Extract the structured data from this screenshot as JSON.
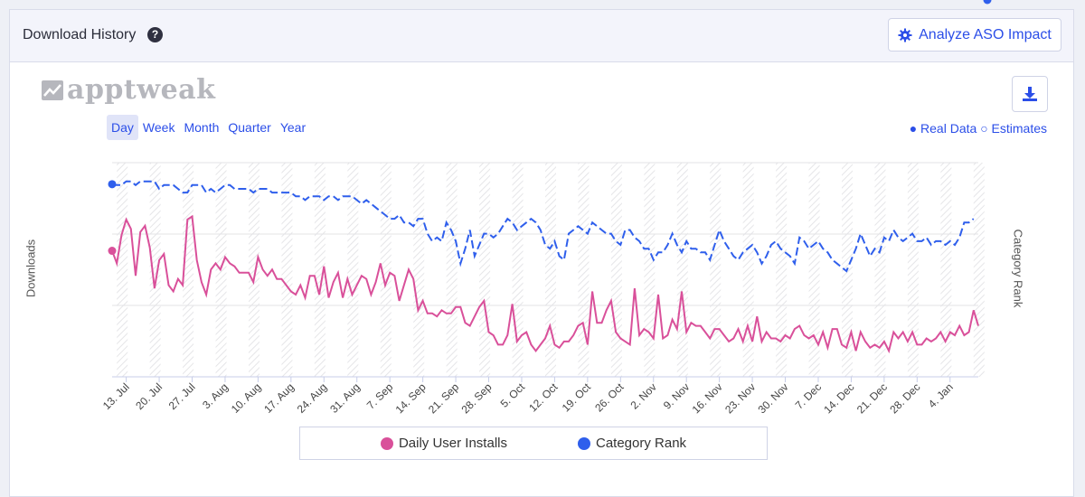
{
  "header": {
    "title": "Download History",
    "help_icon": "question-circle-icon",
    "analyze_button": "Analyze ASO Impact",
    "analyze_icon": "gear-icon"
  },
  "logo": {
    "text": "apptweak",
    "icon": "chart-trend-icon"
  },
  "toolbar": {
    "download_icon": "download-icon",
    "periods": [
      "Day",
      "Week",
      "Month",
      "Quarter",
      "Year"
    ],
    "active_period": "Day"
  },
  "data_legend": {
    "real": "● Real Data",
    "estimates": "○ Estimates"
  },
  "colors": {
    "installs": "#d9509a",
    "rank": "#2f5fec",
    "accent": "#2b4ee8"
  },
  "chart_data": {
    "type": "line",
    "xlabel": "",
    "ylabel": "Downloads",
    "y2label": "Category Rank",
    "grid": true,
    "legend_position": "bottom",
    "x_ticks": [
      "13. Jul",
      "20. Jul",
      "27. Jul",
      "3. Aug",
      "10. Aug",
      "17. Aug",
      "24. Aug",
      "31. Aug",
      "7. Sep",
      "14. Sep",
      "21. Sep",
      "28. Sep",
      "5. Oct",
      "12. Oct",
      "19. Oct",
      "26. Oct",
      "2. Nov",
      "9. Nov",
      "16. Nov",
      "23. Nov",
      "30. Nov",
      "7. Dec",
      "14. Dec",
      "21. Dec",
      "28. Dec",
      "4. Jan"
    ],
    "series": [
      {
        "name": "Daily User Installs",
        "axis": "left",
        "style": "solid",
        "values": [
          70,
          66,
          75,
          80,
          77,
          62,
          76,
          78,
          71,
          58,
          67,
          69,
          59,
          57,
          61,
          59,
          80,
          81,
          67,
          60,
          56,
          64,
          66,
          64,
          68,
          66,
          65,
          63,
          63,
          63,
          60,
          68,
          64,
          62,
          64,
          61,
          61,
          59,
          57,
          56,
          59,
          55,
          62,
          62,
          56,
          65,
          55,
          60,
          63,
          55,
          61,
          56,
          59,
          62,
          61,
          56,
          60,
          66,
          59,
          63,
          62,
          54,
          59,
          64,
          61,
          51,
          54,
          50,
          50,
          49,
          51,
          50,
          50,
          52,
          52,
          47,
          46,
          49,
          52,
          54,
          44,
          43,
          40,
          40,
          43,
          53,
          41,
          43,
          44,
          40,
          38,
          40,
          42,
          46,
          40,
          39,
          41,
          41,
          43,
          46,
          47,
          40,
          57,
          47,
          47,
          51,
          54,
          44,
          42,
          41,
          40,
          58,
          43,
          45,
          44,
          42,
          56,
          42,
          43,
          48,
          45,
          57,
          44,
          47,
          46,
          46,
          44,
          42,
          45,
          45,
          43,
          41,
          42,
          45,
          41,
          46,
          41,
          49,
          41,
          44,
          42,
          42,
          41,
          43,
          42,
          45,
          46,
          43,
          42,
          43,
          40,
          44,
          39,
          45,
          45,
          40,
          39,
          44,
          38,
          44,
          41,
          39,
          40,
          39,
          41,
          38,
          44,
          42,
          44,
          41,
          44,
          40,
          40,
          42,
          41,
          42,
          44,
          41,
          44,
          43,
          46,
          43,
          44,
          51,
          46
        ],
        "peaks_note": ""
      },
      {
        "name": "Category Rank",
        "axis": "right",
        "style": "dashed",
        "values": [
          11,
          11,
          11,
          10,
          10,
          11,
          10,
          10,
          10,
          10,
          12,
          11,
          11,
          11,
          12,
          13,
          13,
          11,
          11,
          11,
          13,
          12,
          13,
          12,
          11,
          11,
          12,
          12,
          12,
          12,
          13,
          12,
          12,
          12,
          13,
          13,
          13,
          13,
          13,
          14,
          14,
          15,
          14,
          14,
          14,
          15,
          14,
          14,
          15,
          14,
          14,
          14,
          15,
          16,
          15,
          16,
          17,
          18,
          19,
          20,
          20,
          19,
          21,
          21,
          22,
          20,
          20,
          24,
          26,
          25,
          26,
          21,
          23,
          26,
          32,
          28,
          23,
          30,
          27,
          24,
          24,
          25,
          24,
          22,
          20,
          21,
          23,
          22,
          21,
          20,
          21,
          23,
          27,
          28,
          26,
          30,
          31,
          24,
          23,
          22,
          23,
          24,
          21,
          22,
          23,
          24,
          24,
          26,
          27,
          23,
          23,
          25,
          26,
          28,
          28,
          31,
          29,
          29,
          27,
          24,
          27,
          29,
          26,
          28,
          28,
          29,
          29,
          31,
          27,
          23,
          26,
          28,
          30,
          31,
          29,
          28,
          27,
          29,
          32,
          30,
          27,
          26,
          28,
          29,
          30,
          32,
          25,
          26,
          28,
          27,
          26,
          28,
          29,
          31,
          32,
          33,
          34,
          31,
          28,
          24,
          27,
          30,
          28,
          29,
          25,
          26,
          23,
          25,
          26,
          25,
          24,
          26,
          26,
          25,
          27,
          26,
          26,
          27,
          26,
          27,
          25,
          21,
          21,
          20
        ],
        "peaks_note": ""
      }
    ]
  },
  "legend": {
    "items": [
      {
        "label": "Daily User Installs",
        "color": "#d9509a"
      },
      {
        "label": "Category Rank",
        "color": "#2f5fec"
      }
    ]
  }
}
